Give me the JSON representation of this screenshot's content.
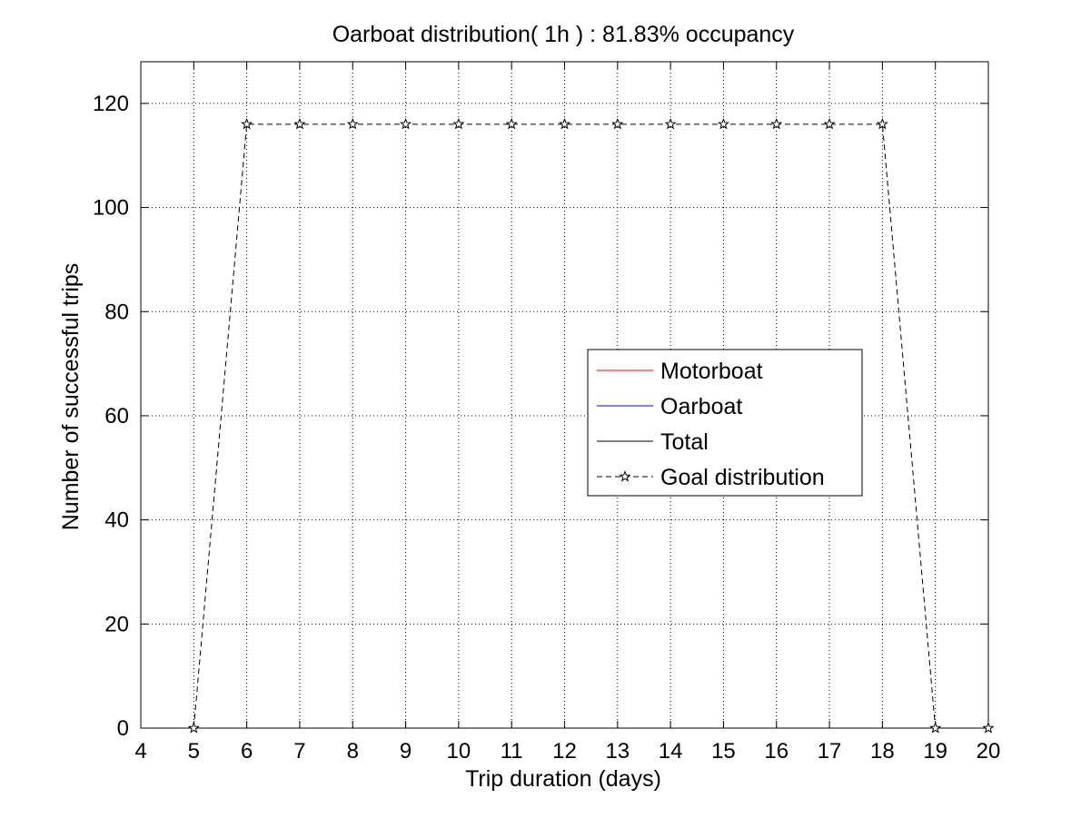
{
  "chart_data": {
    "type": "line",
    "title": "Oarboat distribution( 1h ) : 81.83% occupancy",
    "xlabel": "Trip duration (days)",
    "ylabel": "Number of successful trips",
    "xlim": [
      4,
      20
    ],
    "ylim": [
      0,
      128
    ],
    "x_ticks": [
      4,
      5,
      6,
      7,
      8,
      9,
      10,
      11,
      12,
      13,
      14,
      15,
      16,
      17,
      18,
      19,
      20
    ],
    "y_ticks": [
      0,
      20,
      40,
      60,
      80,
      100,
      120
    ],
    "grid": true,
    "legend_position": "center-right",
    "series": [
      {
        "name": "Motorboat",
        "color": "#ff0000",
        "line_style": "solid",
        "marker": "none",
        "x": [],
        "y": []
      },
      {
        "name": "Oarboat",
        "color": "#0000ff",
        "line_style": "solid",
        "marker": "none",
        "x": [],
        "y": []
      },
      {
        "name": "Total",
        "color": "#000000",
        "line_style": "solid",
        "marker": "none",
        "x": [],
        "y": []
      },
      {
        "name": "Goal distribution",
        "color": "#000000",
        "line_style": "dashed",
        "marker": "star",
        "x": [
          5,
          6,
          7,
          8,
          9,
          10,
          11,
          12,
          13,
          14,
          15,
          16,
          17,
          18,
          19,
          20
        ],
        "y": [
          0,
          116,
          116,
          116,
          116,
          116,
          116,
          116,
          116,
          116,
          116,
          116,
          116,
          116,
          0,
          0
        ]
      }
    ]
  }
}
